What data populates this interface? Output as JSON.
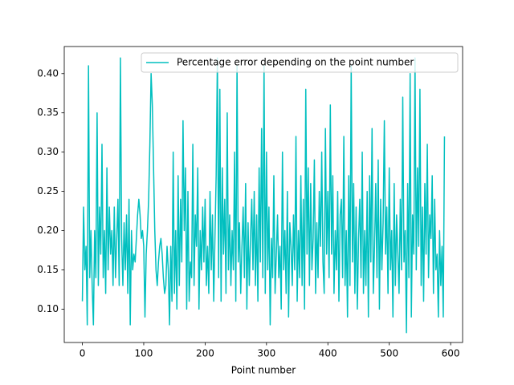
{
  "chart_data": {
    "type": "line",
    "xlabel": "Point number",
    "legend": "upper right",
    "grid": false,
    "x": [
      0,
      2,
      4,
      6,
      8,
      10,
      12,
      14,
      16,
      18,
      20,
      22,
      24,
      26,
      28,
      30,
      32,
      34,
      36,
      38,
      40,
      42,
      44,
      46,
      48,
      50,
      52,
      54,
      56,
      58,
      60,
      62,
      64,
      66,
      68,
      70,
      72,
      74,
      76,
      78,
      80,
      82,
      84,
      86,
      88,
      90,
      92,
      94,
      96,
      98,
      100,
      102,
      104,
      106,
      108,
      110,
      112,
      114,
      116,
      118,
      120,
      122,
      124,
      126,
      128,
      130,
      132,
      134,
      136,
      138,
      140,
      142,
      144,
      146,
      148,
      150,
      152,
      154,
      156,
      158,
      160,
      162,
      164,
      166,
      168,
      170,
      172,
      174,
      176,
      178,
      180,
      182,
      184,
      186,
      188,
      190,
      192,
      194,
      196,
      198,
      200,
      202,
      204,
      206,
      208,
      210,
      212,
      214,
      216,
      218,
      220,
      222,
      224,
      226,
      228,
      230,
      232,
      234,
      236,
      238,
      240,
      242,
      244,
      246,
      248,
      250,
      252,
      254,
      256,
      258,
      260,
      262,
      264,
      266,
      268,
      270,
      272,
      274,
      276,
      278,
      280,
      282,
      284,
      286,
      288,
      290,
      292,
      294,
      296,
      298,
      300,
      302,
      304,
      306,
      308,
      310,
      312,
      314,
      316,
      318,
      320,
      322,
      324,
      326,
      328,
      330,
      332,
      334,
      336,
      338,
      340,
      342,
      344,
      346,
      348,
      350,
      352,
      354,
      356,
      358,
      360,
      362,
      364,
      366,
      368,
      370,
      372,
      374,
      376,
      378,
      380,
      382,
      384,
      386,
      388,
      390,
      392,
      394,
      396,
      398,
      400,
      402,
      404,
      406,
      408,
      410,
      412,
      414,
      416,
      418,
      420,
      422,
      424,
      426,
      428,
      430,
      432,
      434,
      436,
      438,
      440,
      442,
      444,
      446,
      448,
      450,
      452,
      454,
      456,
      458,
      460,
      462,
      464,
      466,
      468,
      470,
      472,
      474,
      476,
      478,
      480,
      482,
      484,
      486,
      488,
      490,
      492,
      494,
      496,
      498,
      500,
      502,
      504,
      506,
      508,
      510,
      512,
      514,
      516,
      518,
      520,
      522,
      524,
      526,
      528,
      530,
      532,
      534,
      536,
      538,
      540,
      542,
      544,
      546,
      548,
      550,
      552,
      554,
      556,
      558,
      560,
      562,
      564,
      566,
      568,
      570,
      572,
      574,
      576,
      578,
      580,
      582,
      584,
      586,
      588,
      590
    ],
    "series": [
      {
        "name": "Percentage error depending on the point number",
        "color": "#00bfbf",
        "values": [
          0.11,
          0.23,
          0.15,
          0.18,
          0.08,
          0.41,
          0.14,
          0.2,
          0.13,
          0.08,
          0.2,
          0.14,
          0.35,
          0.13,
          0.23,
          0.17,
          0.31,
          0.14,
          0.2,
          0.12,
          0.28,
          0.15,
          0.23,
          0.17,
          0.2,
          0.13,
          0.23,
          0.14,
          0.19,
          0.24,
          0.13,
          0.42,
          0.19,
          0.13,
          0.21,
          0.15,
          0.22,
          0.12,
          0.24,
          0.08,
          0.2,
          0.15,
          0.17,
          0.16,
          0.19,
          0.22,
          0.24,
          0.22,
          0.19,
          0.2,
          0.18,
          0.09,
          0.17,
          0.2,
          0.24,
          0.31,
          0.4,
          0.36,
          0.28,
          0.2,
          0.15,
          0.13,
          0.16,
          0.18,
          0.19,
          0.17,
          0.14,
          0.12,
          0.13,
          0.18,
          0.15,
          0.08,
          0.18,
          0.11,
          0.3,
          0.12,
          0.2,
          0.1,
          0.27,
          0.13,
          0.24,
          0.16,
          0.34,
          0.2,
          0.28,
          0.1,
          0.25,
          0.11,
          0.16,
          0.14,
          0.31,
          0.13,
          0.22,
          0.18,
          0.28,
          0.1,
          0.2,
          0.15,
          0.23,
          0.16,
          0.24,
          0.13,
          0.18,
          0.12,
          0.25,
          0.15,
          0.22,
          0.11,
          0.19,
          0.27,
          0.42,
          0.14,
          0.38,
          0.11,
          0.28,
          0.17,
          0.24,
          0.12,
          0.35,
          0.15,
          0.22,
          0.13,
          0.2,
          0.15,
          0.3,
          0.11,
          0.41,
          0.16,
          0.21,
          0.12,
          0.18,
          0.23,
          0.14,
          0.26,
          0.1,
          0.21,
          0.13,
          0.19,
          0.24,
          0.15,
          0.25,
          0.13,
          0.22,
          0.11,
          0.28,
          0.16,
          0.33,
          0.14,
          0.41,
          0.12,
          0.3,
          0.15,
          0.23,
          0.08,
          0.19,
          0.14,
          0.27,
          0.12,
          0.17,
          0.22,
          0.14,
          0.18,
          0.1,
          0.3,
          0.15,
          0.2,
          0.12,
          0.25,
          0.09,
          0.21,
          0.18,
          0.13,
          0.22,
          0.15,
          0.32,
          0.11,
          0.2,
          0.14,
          0.27,
          0.13,
          0.24,
          0.1,
          0.38,
          0.17,
          0.28,
          0.13,
          0.26,
          0.15,
          0.19,
          0.29,
          0.12,
          0.21,
          0.14,
          0.25,
          0.18,
          0.3,
          0.16,
          0.12,
          0.33,
          0.17,
          0.25,
          0.14,
          0.36,
          0.17,
          0.27,
          0.12,
          0.2,
          0.15,
          0.25,
          0.11,
          0.22,
          0.24,
          0.14,
          0.32,
          0.13,
          0.2,
          0.09,
          0.27,
          0.13,
          0.41,
          0.16,
          0.26,
          0.12,
          0.23,
          0.1,
          0.19,
          0.24,
          0.14,
          0.3,
          0.12,
          0.2,
          0.13,
          0.25,
          0.09,
          0.27,
          0.16,
          0.33,
          0.12,
          0.18,
          0.26,
          0.14,
          0.29,
          0.1,
          0.24,
          0.15,
          0.21,
          0.34,
          0.17,
          0.23,
          0.12,
          0.28,
          0.15,
          0.2,
          0.09,
          0.26,
          0.13,
          0.22,
          0.17,
          0.12,
          0.24,
          0.15,
          0.37,
          0.16,
          0.2,
          0.07,
          0.26,
          0.14,
          0.4,
          0.09,
          0.22,
          0.17,
          0.42,
          0.15,
          0.28,
          0.18,
          0.38,
          0.13,
          0.23,
          0.11,
          0.26,
          0.17,
          0.31,
          0.14,
          0.22,
          0.19,
          0.27,
          0.12,
          0.24,
          0.15,
          0.17,
          0.09,
          0.2,
          0.13,
          0.18,
          0.09,
          0.32
        ]
      }
    ],
    "xlim": [
      -29.5,
      619.5
    ],
    "ylim": [
      0.0575,
      0.4345
    ],
    "xticks": [
      0,
      100,
      200,
      300,
      400,
      500,
      600
    ],
    "yticks": [
      {
        "value": 0.1,
        "label": "0.10"
      },
      {
        "value": 0.15,
        "label": "0.15"
      },
      {
        "value": 0.2,
        "label": "0.20"
      },
      {
        "value": 0.25,
        "label": "0.25"
      },
      {
        "value": 0.3,
        "label": "0.30"
      },
      {
        "value": 0.35,
        "label": "0.35"
      },
      {
        "value": 0.4,
        "label": "0.40"
      }
    ]
  }
}
